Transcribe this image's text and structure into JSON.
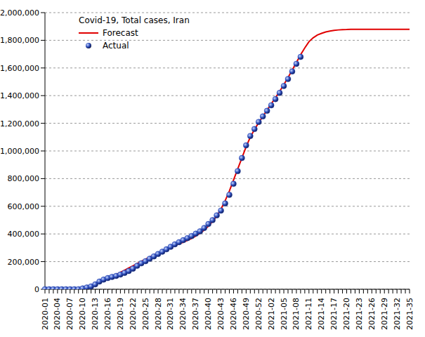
{
  "chart_data": {
    "type": "line",
    "title": "Covid-19, Total cases, Iran",
    "categories": [
      "2020-01",
      null,
      null,
      "2020-04",
      null,
      null,
      "2020-07",
      null,
      null,
      "2020-10",
      null,
      null,
      "2020-13",
      null,
      null,
      "2020-16",
      null,
      null,
      "2020-19",
      null,
      null,
      "2020-22",
      null,
      null,
      "2020-25",
      null,
      null,
      "2020-28",
      null,
      null,
      "2020-31",
      null,
      null,
      "2020-34",
      null,
      null,
      "2020-37",
      null,
      null,
      "2020-40",
      null,
      null,
      "2020-43",
      null,
      null,
      "2020-46",
      null,
      null,
      "2020-49",
      null,
      null,
      "2020-52",
      null,
      null,
      "2021-02",
      null,
      null,
      "2021-05",
      null,
      null,
      "2021-08",
      null,
      null,
      "2021-11",
      null,
      null,
      "2021-14",
      null,
      null,
      "2021-17",
      null,
      null,
      "2021-20",
      null,
      null,
      "2021-23",
      null,
      null,
      "2021-26",
      null,
      null,
      "2021-29",
      null,
      null,
      "2021-32",
      null,
      null,
      "2021-35"
    ],
    "series": [
      {
        "name": "Forecast",
        "color": "#e00000",
        "type": "line",
        "line_style": "solid",
        "values": [
          0,
          0,
          0,
          0,
          0,
          0,
          0,
          500,
          3000,
          8000,
          15000,
          24000,
          36000,
          50000,
          64000,
          78000,
          92000,
          106000,
          122000,
          138000,
          154000,
          170000,
          186000,
          202000,
          218000,
          233000,
          248000,
          262000,
          276000,
          290000,
          303000,
          316000,
          328000,
          340000,
          353000,
          368000,
          385000,
          405000,
          428000,
          456000,
          490000,
          530000,
          580000,
          640000,
          710000,
          790000,
          870000,
          950000,
          1030000,
          1100000,
          1155000,
          1205000,
          1250000,
          1295000,
          1340000,
          1385000,
          1430000,
          1480000,
          1530000,
          1585000,
          1640000,
          1695000,
          1745000,
          1790000,
          1818000,
          1838000,
          1850000,
          1860000,
          1867000,
          1872000,
          1875000,
          1877000,
          1878000,
          1880000,
          1880000,
          1880000,
          1880000,
          1880000,
          1880000,
          1880000,
          1880000,
          1880000,
          1880000,
          1880000,
          1880000,
          1880000,
          1880000,
          1880000
        ]
      },
      {
        "name": "Actual",
        "color": "#2848b8",
        "type": "scatter",
        "marker": "circle",
        "values": [
          0,
          0,
          0,
          0,
          0,
          0,
          0,
          43,
          593,
          5823,
          12729,
          20610,
          35408,
          55743,
          70029,
          80868,
          89328,
          96448,
          106220,
          118392,
          131652,
          148950,
          169425,
          187427,
          202584,
          220180,
          237878,
          255117,
          271606,
          288839,
          306752,
          324692,
          340206,
          354764,
          369911,
          384666,
          402029,
          419043,
          443086,
          471772,
          500075,
          534631,
          568896,
          620491,
          682486,
          762068,
          854361,
          948749,
          1040547,
          1108269,
          1158384,
          1210000,
          1250000,
          1290000,
          1330000,
          1375000,
          1420000,
          1470000,
          1520000,
          1575000,
          1630000,
          1680000,
          null,
          null,
          null,
          null,
          null,
          null,
          null,
          null,
          null,
          null,
          null,
          null,
          null,
          null,
          null,
          null,
          null,
          null,
          null,
          null,
          null,
          null,
          null,
          null,
          null,
          null
        ]
      }
    ],
    "ylim": [
      0,
      2000000
    ],
    "yticks": [
      0,
      {
        "value": 200000,
        "label": "200,000"
      },
      {
        "value": 400000,
        "label": "400,000"
      },
      {
        "value": 600000,
        "label": "600,000"
      },
      {
        "value": 800000,
        "label": "800,000"
      },
      {
        "value": 1000000,
        "label": "1,000,000"
      },
      {
        "value": 1200000,
        "label": "1,200,000"
      },
      {
        "value": 1400000,
        "label": "1,400,000"
      },
      {
        "value": 1600000,
        "label": "1,600,000"
      },
      {
        "value": 1800000,
        "label": "1,800,000"
      },
      {
        "value": 2000000,
        "label": "2,000,000"
      }
    ],
    "grid": true,
    "legend": "top-left"
  }
}
